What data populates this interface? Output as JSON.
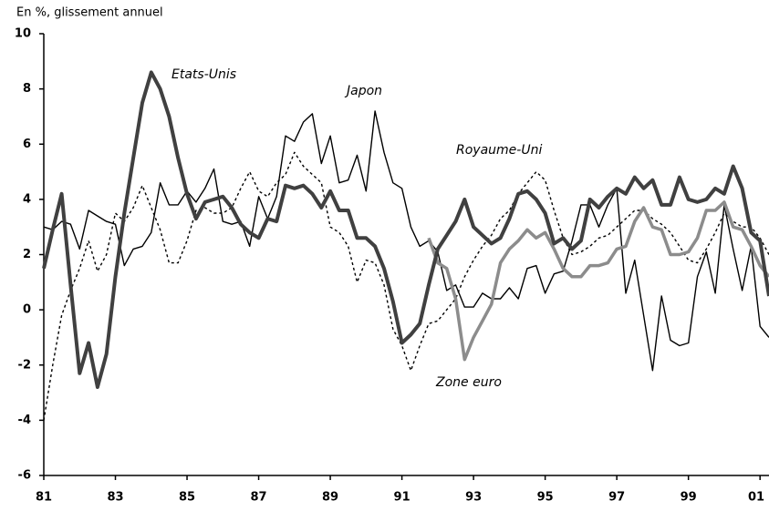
{
  "chart_data": {
    "type": "line",
    "ylabel": "En %, glissement annuel",
    "x": [
      1981,
      1981.25,
      1981.5,
      1981.75,
      1982,
      1982.25,
      1982.5,
      1982.75,
      1983,
      1983.25,
      1983.5,
      1983.75,
      1984,
      1984.25,
      1984.5,
      1984.75,
      1985,
      1985.25,
      1985.5,
      1985.75,
      1986,
      1986.25,
      1986.5,
      1986.75,
      1987,
      1987.25,
      1987.5,
      1987.75,
      1988,
      1988.25,
      1988.5,
      1988.75,
      1989,
      1989.25,
      1989.5,
      1989.75,
      1990,
      1990.25,
      1990.5,
      1990.75,
      1991,
      1991.25,
      1991.5,
      1991.75,
      1992,
      1992.25,
      1992.5,
      1992.75,
      1993,
      1993.25,
      1993.5,
      1993.75,
      1994,
      1994.25,
      1994.5,
      1994.75,
      1995,
      1995.25,
      1995.5,
      1995.75,
      1996,
      1996.25,
      1996.5,
      1996.75,
      1997,
      1997.25,
      1997.5,
      1997.75,
      1998,
      1998.25,
      1998.5,
      1998.75,
      1999,
      1999.25,
      1999.5,
      1999.75,
      2000,
      2000.25,
      2000.5,
      2000.75,
      2001,
      2001.25
    ],
    "series": [
      {
        "name": "Japon",
        "color": "#000000",
        "values": [
          3.0,
          2.9,
          3.2,
          3.1,
          2.2,
          3.6,
          3.4,
          3.2,
          3.1,
          1.6,
          2.2,
          2.3,
          2.8,
          4.6,
          3.8,
          3.8,
          4.3,
          3.9,
          4.4,
          5.1,
          3.2,
          3.1,
          3.2,
          2.3,
          4.1,
          3.3,
          4.1,
          6.3,
          6.1,
          6.8,
          7.1,
          5.3,
          6.3,
          4.6,
          4.7,
          5.6,
          4.3,
          7.2,
          5.7,
          4.6,
          4.4,
          3.0,
          2.3,
          2.5,
          2.1,
          0.7,
          0.9,
          0.1,
          0.1,
          0.6,
          0.4,
          0.4,
          0.8,
          0.4,
          1.5,
          1.6,
          0.6,
          1.3,
          1.4,
          2.5,
          3.8,
          3.8,
          3.0,
          3.8,
          4.4,
          0.6,
          1.8,
          -0.2,
          -2.2,
          0.5,
          -1.1,
          -1.3,
          -1.2,
          1.2,
          2.1,
          0.6,
          3.8,
          2.2,
          0.7,
          2.3,
          -0.6,
          -1.0
        ]
      },
      {
        "name": "Royaume-Uni",
        "color": "#000000",
        "dashed": true,
        "values": [
          -4.0,
          -2.0,
          -0.2,
          0.7,
          1.5,
          2.5,
          1.4,
          2.0,
          3.5,
          3.2,
          3.7,
          4.5,
          3.7,
          2.9,
          1.7,
          1.7,
          2.5,
          3.6,
          3.7,
          3.5,
          3.5,
          3.7,
          4.4,
          5.0,
          4.3,
          4.1,
          4.6,
          4.9,
          5.7,
          5.2,
          4.9,
          4.6,
          3.0,
          2.8,
          2.3,
          1.0,
          1.8,
          1.7,
          0.9,
          -0.7,
          -1.3,
          -2.2,
          -1.3,
          -0.5,
          -0.4,
          0.0,
          0.4,
          1.2,
          1.8,
          2.3,
          2.7,
          3.3,
          3.6,
          4.2,
          4.6,
          5.0,
          4.7,
          3.6,
          2.6,
          2.0,
          2.1,
          2.3,
          2.6,
          2.7,
          3.0,
          3.3,
          3.6,
          3.6,
          3.3,
          3.1,
          2.8,
          2.3,
          1.8,
          1.7,
          2.2,
          2.8,
          3.5,
          3.2,
          3.0,
          3.0,
          2.6,
          2.0
        ]
      },
      {
        "name": "Zone euro",
        "color": "#8c8c8c",
        "values": [
          null,
          null,
          null,
          null,
          null,
          null,
          null,
          null,
          null,
          null,
          null,
          null,
          null,
          null,
          null,
          null,
          null,
          null,
          null,
          null,
          null,
          null,
          null,
          null,
          null,
          null,
          null,
          null,
          null,
          null,
          null,
          null,
          null,
          null,
          null,
          null,
          null,
          null,
          null,
          null,
          null,
          null,
          null,
          2.6,
          1.7,
          1.5,
          0.4,
          -1.8,
          -1.0,
          -0.4,
          0.2,
          1.7,
          2.2,
          2.5,
          2.9,
          2.6,
          2.8,
          2.2,
          1.5,
          1.2,
          1.2,
          1.6,
          1.6,
          1.7,
          2.2,
          2.3,
          3.2,
          3.7,
          3.0,
          2.9,
          2.0,
          2.0,
          2.1,
          2.6,
          3.6,
          3.6,
          3.9,
          3.0,
          2.9,
          2.3,
          1.6,
          1.2
        ]
      },
      {
        "name": "Etats-Unis",
        "color": "#404040",
        "values": [
          1.5,
          2.9,
          4.2,
          0.9,
          -2.3,
          -1.2,
          -2.8,
          -1.6,
          1.2,
          3.5,
          5.5,
          7.5,
          8.6,
          8.0,
          7.0,
          5.5,
          4.2,
          3.3,
          3.9,
          4.0,
          4.1,
          3.7,
          3.1,
          2.8,
          2.6,
          3.3,
          3.2,
          4.5,
          4.4,
          4.5,
          4.2,
          3.7,
          4.3,
          3.6,
          3.6,
          2.6,
          2.6,
          2.3,
          1.5,
          0.3,
          -1.2,
          -0.9,
          -0.5,
          0.9,
          2.2,
          2.7,
          3.2,
          4.0,
          3.0,
          2.7,
          2.4,
          2.6,
          3.3,
          4.2,
          4.3,
          4.0,
          3.5,
          2.4,
          2.6,
          2.2,
          2.5,
          4.0,
          3.7,
          4.1,
          4.4,
          4.2,
          4.8,
          4.4,
          4.7,
          3.8,
          3.8,
          4.8,
          4.0,
          3.9,
          4.0,
          4.4,
          4.2,
          5.2,
          4.4,
          2.8,
          2.5,
          0.5
        ]
      }
    ],
    "xlim": [
      1981,
      2001.25
    ],
    "xticks": [
      {
        "value": 1981,
        "label": "81"
      },
      {
        "value": 1983,
        "label": "83"
      },
      {
        "value": 1985,
        "label": "85"
      },
      {
        "value": 1987,
        "label": "87"
      },
      {
        "value": 1989,
        "label": "89"
      },
      {
        "value": 1991,
        "label": "91"
      },
      {
        "value": 1993,
        "label": "93"
      },
      {
        "value": 1995,
        "label": "95"
      },
      {
        "value": 1997,
        "label": "97"
      },
      {
        "value": 1999,
        "label": "99"
      },
      {
        "value": 2001,
        "label": "01"
      }
    ],
    "ylim": [
      -6,
      10
    ],
    "yticks": [
      -6,
      -4,
      -2,
      0,
      2,
      4,
      6,
      8,
      10
    ]
  }
}
